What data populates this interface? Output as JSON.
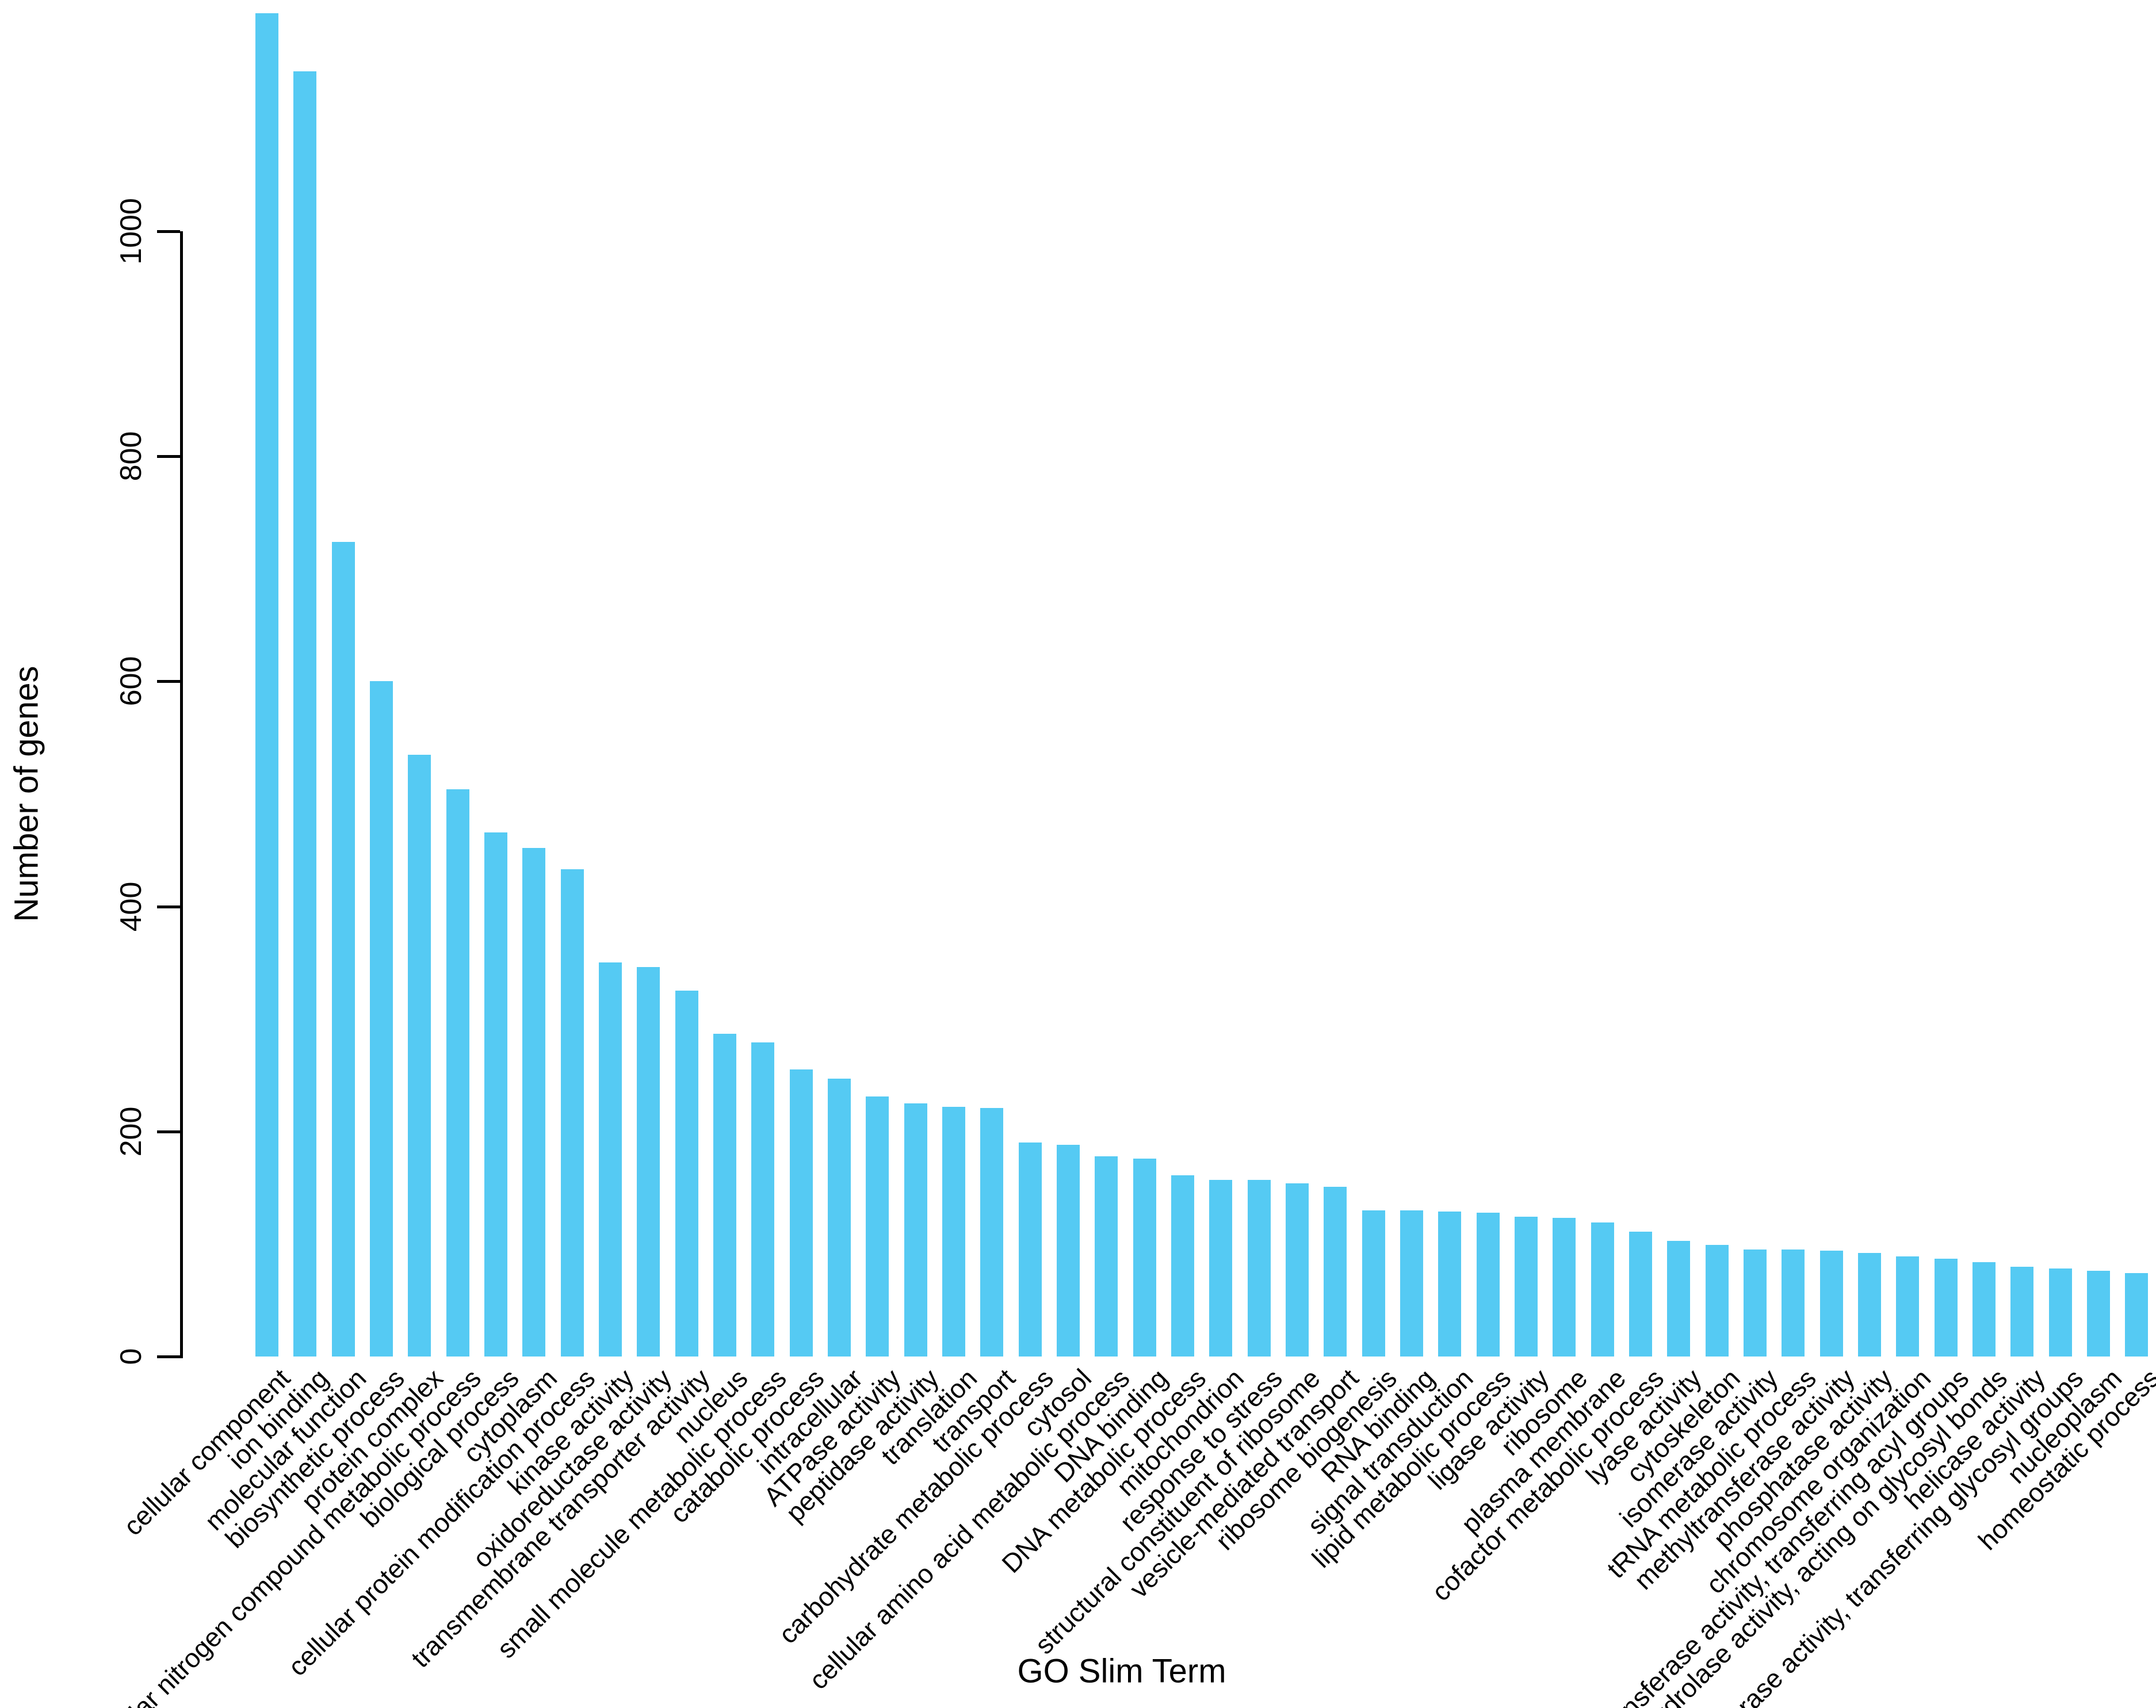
{
  "chart_data": {
    "type": "bar",
    "title": "",
    "xlabel": "GO Slim Term",
    "ylabel": "Number of genes",
    "ylim": [
      0,
      1200
    ],
    "yticks": [
      0,
      200,
      400,
      600,
      800,
      1000
    ],
    "ytick_labels": [
      "0",
      "200",
      "400",
      "600",
      "800",
      "1000"
    ],
    "grid": false,
    "legend_position": "none",
    "bar_color": "#55CAF3",
    "axis_color": "#000000",
    "categories": [
      "cellular component",
      "ion binding",
      "molecular function",
      "biosynthetic process",
      "protein complex",
      "cellular nitrogen compound metabolic process",
      "biological process",
      "cytoplasm",
      "cellular protein modification process",
      "kinase activity",
      "oxidoreductase activity",
      "transmembrane transporter activity",
      "nucleus",
      "small molecule metabolic process",
      "catabolic process",
      "intracellular",
      "ATPase activity",
      "peptidase activity",
      "translation",
      "transport",
      "carbohydrate metabolic process",
      "cytosol",
      "cellular amino acid metabolic process",
      "DNA binding",
      "DNA metabolic process",
      "mitochondrion",
      "response to stress",
      "structural constituent of ribosome",
      "vesicle-mediated transport",
      "ribosome biogenesis",
      "RNA binding",
      "signal transduction",
      "lipid metabolic process",
      "ligase activity",
      "ribosome",
      "plasma membrane",
      "cofactor metabolic process",
      "lyase activity",
      "cytoskeleton",
      "isomerase activity",
      "tRNA metabolic process",
      "methyltransferase activity",
      "phosphatase activity",
      "chromosome organization",
      "transferase activity, transferring acyl groups",
      "hydrolase activity, acting on glycosyl bonds",
      "helicase activity",
      "transferase activity, transferring glycosyl groups",
      "nucleoplasm",
      "homeostatic process"
    ],
    "values": [
      1194,
      1142,
      724,
      600,
      535,
      504,
      466,
      452,
      433,
      350,
      346,
      325,
      287,
      279,
      255,
      247,
      231,
      225,
      222,
      221,
      190,
      188,
      178,
      176,
      161,
      157,
      157,
      154,
      151,
      130,
      130,
      129,
      128,
      124,
      123,
      119,
      111,
      103,
      99,
      95,
      95,
      94,
      92,
      89,
      87,
      84,
      80,
      78,
      76,
      74
    ]
  }
}
